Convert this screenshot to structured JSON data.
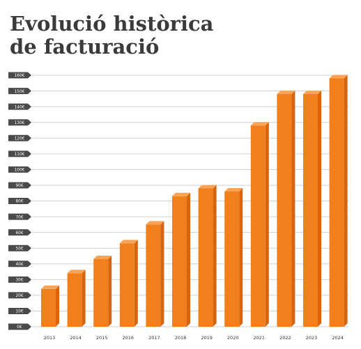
{
  "title_line1": "Evolució històrica",
  "title_line2": "de facturació",
  "chart_data": {
    "type": "bar",
    "title": "Evolució històrica de facturació",
    "categories": [
      "2013",
      "2014",
      "2015",
      "2016",
      "2017",
      "2018",
      "2019",
      "2020",
      "2021",
      "2022",
      "2023",
      "2024"
    ],
    "values": [
      24,
      34,
      43,
      53,
      65,
      83,
      88,
      86,
      128,
      148,
      148,
      158
    ],
    "y_ticks": [
      "0€",
      "10€",
      "20€",
      "30€",
      "40€",
      "50€",
      "60€",
      "70€",
      "80€",
      "90€",
      "100€",
      "110€",
      "120€",
      "130€",
      "140€",
      "150€",
      "160€"
    ],
    "ylim": [
      0,
      160
    ],
    "xlabel": "",
    "ylabel": "",
    "grid": true,
    "legend": "none",
    "colors": {
      "bar_front": "#f07f1c",
      "bar_side": "#d7650f",
      "bar_top": "#f8a356",
      "tick_badge": "#4a4a4a",
      "gridline": "#cfcfcf",
      "title": "#3b3b3b"
    }
  }
}
